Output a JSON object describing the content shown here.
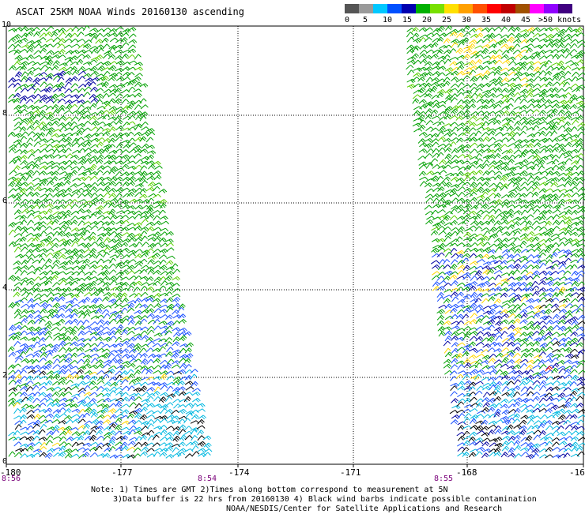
{
  "title": "ASCAT 25KM NOAA Winds 20160130 ascending",
  "colorbar": {
    "labels": [
      "0",
      "5",
      "10",
      "15",
      "20",
      "25",
      "30",
      "35",
      "40",
      "45",
      ">50 knots"
    ],
    "colors": [
      "#555555",
      "#9a9a9a",
      "#00c8ff",
      "#0050ff",
      "#0000b0",
      "#00b000",
      "#78e000",
      "#ffe000",
      "#ffa000",
      "#ff5000",
      "#ff0000",
      "#c00000",
      "#a05000",
      "#ff00ff",
      "#9000ff",
      "#400080"
    ]
  },
  "map": {
    "y_ticks": [
      "10",
      "8",
      "6",
      "4",
      "2",
      "0"
    ],
    "x_ticks": [
      "-180",
      "-177",
      "-174",
      "-171",
      "-168",
      "-16"
    ],
    "time_labels": [
      "8:56",
      "8:54",
      "8:55"
    ],
    "lat_range": [
      0,
      10
    ],
    "lon_range": [
      -180,
      -165
    ],
    "wind_colors": {
      "calm": "#00b8e0",
      "light": "#1a50ff",
      "moderate": "#0000a0",
      "fresh": "#00a000",
      "strong": "#58d000",
      "gale": "#ffd700",
      "contaminated": "#000000",
      "severe": "#e00000"
    }
  },
  "notes": {
    "line1": "Note: 1) Times are GMT 2)Times along bottom correspond to measurement at 5N",
    "line2": "3)Data buffer is 22 hrs from 20160130 4) Black wind barbs indicate possible contamination",
    "line3": "NOAA/NESDIS/Center for Satellite Applications and Research"
  }
}
